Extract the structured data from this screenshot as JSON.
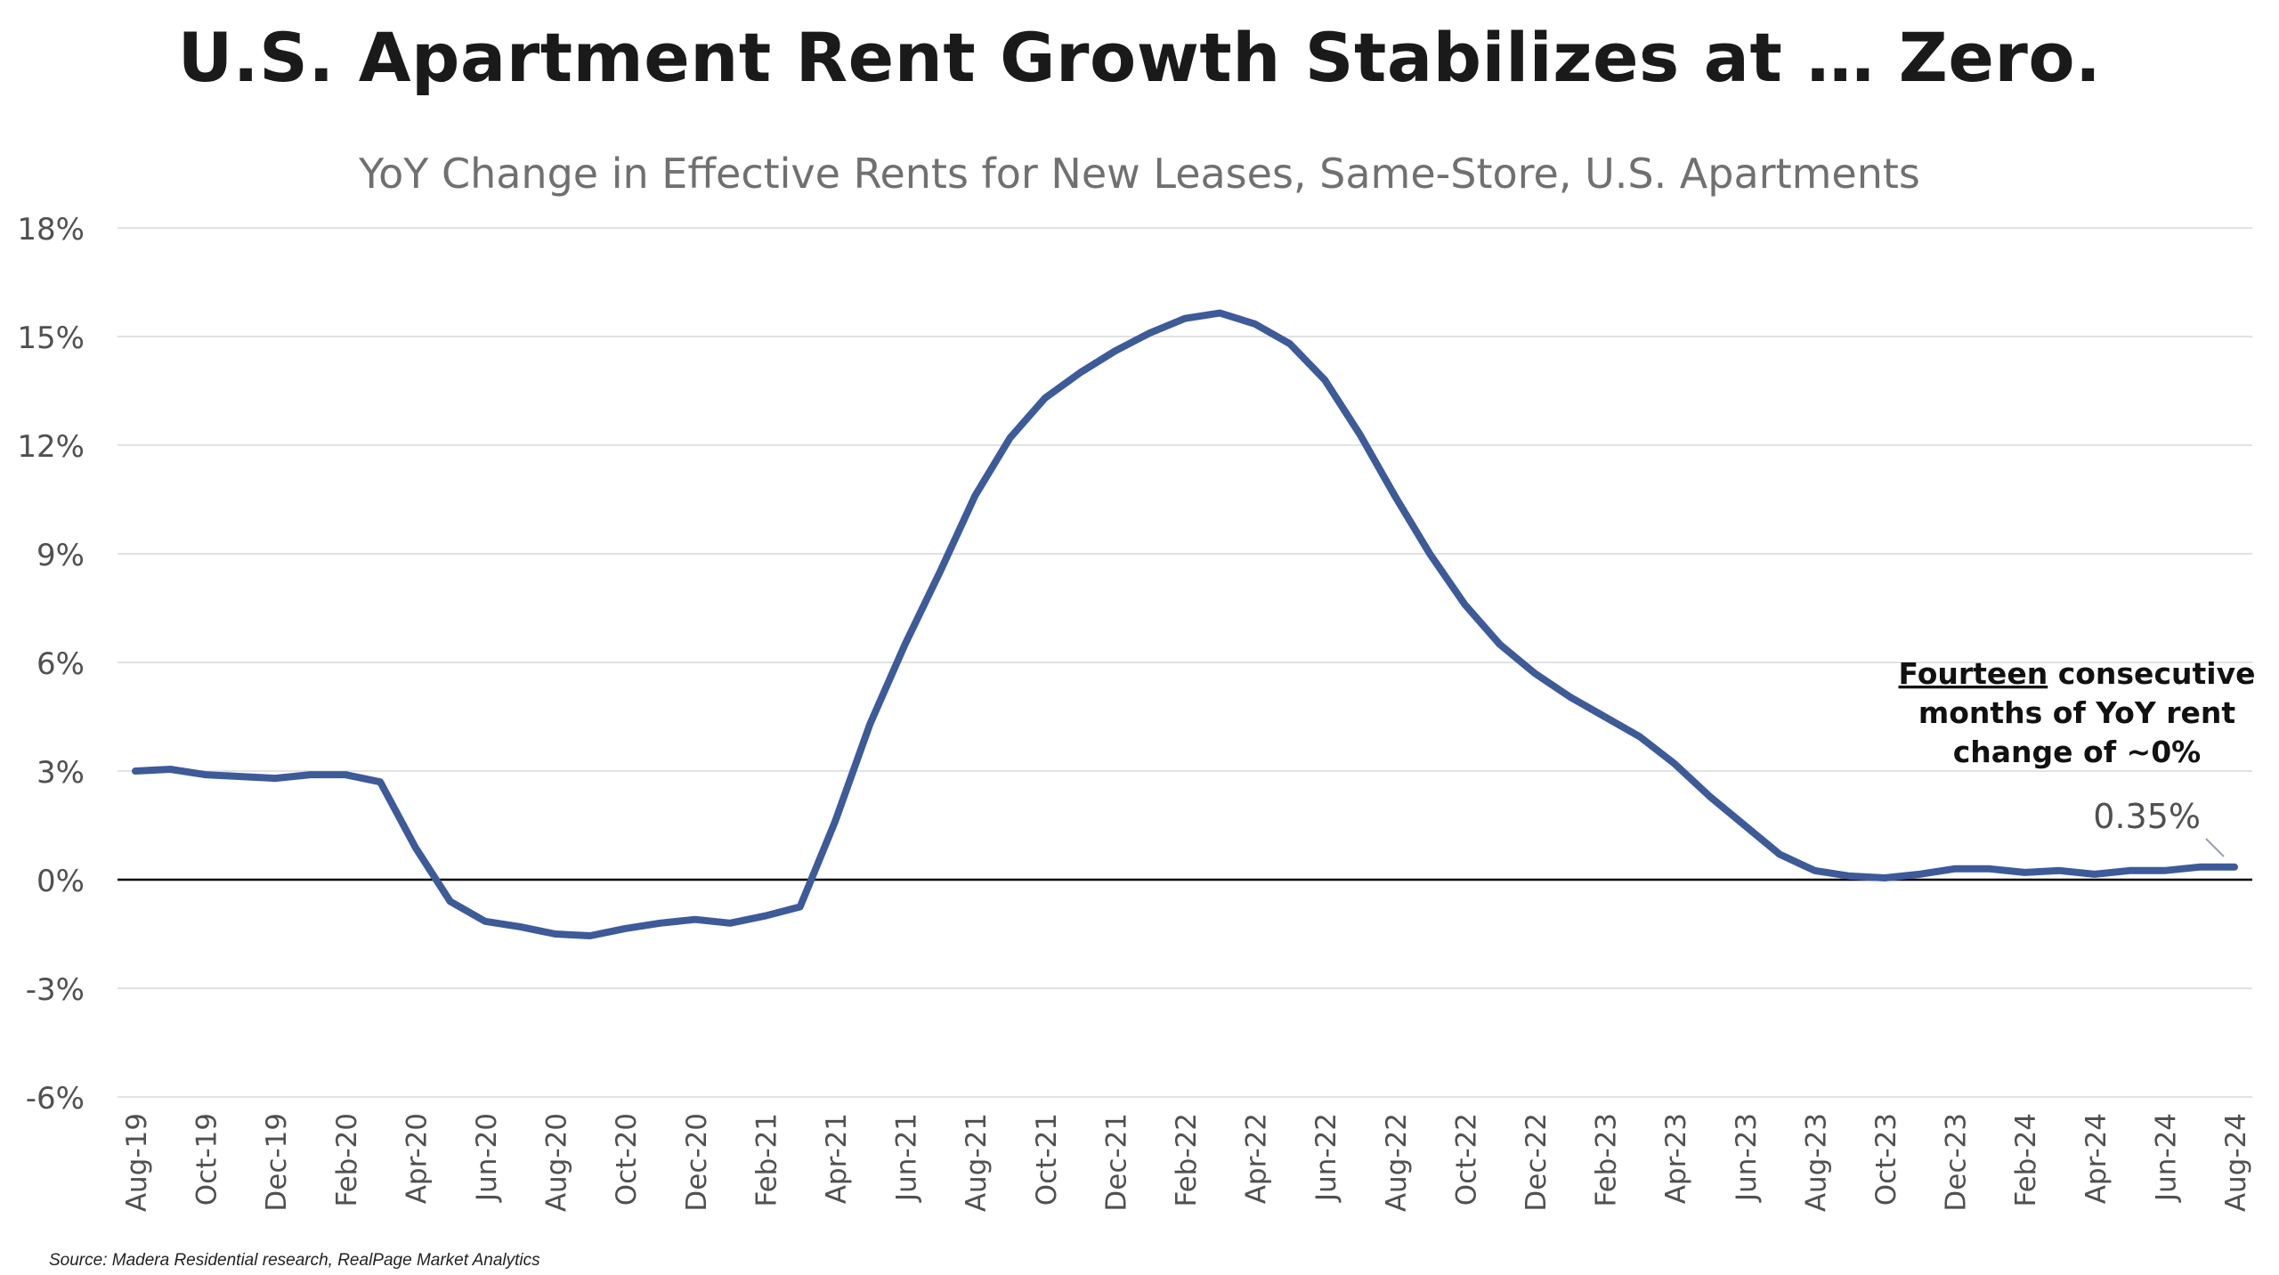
{
  "page": {
    "title": "U.S. Apartment Rent Growth Stabilizes at … Zero.",
    "subtitle": "YoY Change in Effective Rents for New Leases, Same-Store, U.S. Apartments",
    "source": "Source: Madera Residential research, RealPage Market Analytics"
  },
  "chart_data": {
    "type": "line",
    "title": "U.S. Apartment Rent Growth Stabilizes at … Zero.",
    "subtitle": "YoY Change in Effective Rents for New Leases, Same-Store, U.S. Apartments",
    "xlabel": "",
    "ylabel": "",
    "ylim": [
      -6,
      18
    ],
    "yticks": [
      "18%",
      "15%",
      "12%",
      "9%",
      "6%",
      "3%",
      "0%",
      "-3%",
      "-6%"
    ],
    "y_tick_values": [
      18,
      15,
      12,
      9,
      6,
      3,
      0,
      -3,
      -6
    ],
    "grid": true,
    "legend": "none",
    "x": [
      "Aug-19",
      "Sep-19",
      "Oct-19",
      "Nov-19",
      "Dec-19",
      "Jan-20",
      "Feb-20",
      "Mar-20",
      "Apr-20",
      "May-20",
      "Jun-20",
      "Jul-20",
      "Aug-20",
      "Sep-20",
      "Oct-20",
      "Nov-20",
      "Dec-20",
      "Jan-21",
      "Feb-21",
      "Mar-21",
      "Apr-21",
      "May-21",
      "Jun-21",
      "Jul-21",
      "Aug-21",
      "Sep-21",
      "Oct-21",
      "Nov-21",
      "Dec-21",
      "Jan-22",
      "Feb-22",
      "Mar-22",
      "Apr-22",
      "May-22",
      "Jun-22",
      "Jul-22",
      "Aug-22",
      "Sep-22",
      "Oct-22",
      "Nov-22",
      "Dec-22",
      "Jan-23",
      "Feb-23",
      "Mar-23",
      "Apr-23",
      "May-23",
      "Jun-23",
      "Jul-23",
      "Aug-23",
      "Sep-23",
      "Oct-23",
      "Nov-23",
      "Dec-23",
      "Jan-24",
      "Feb-24",
      "Mar-24",
      "Apr-24",
      "May-24",
      "Jun-24",
      "Jul-24",
      "Aug-24"
    ],
    "x_tick_labels": [
      "Aug-19",
      "Oct-19",
      "Dec-19",
      "Feb-20",
      "Apr-20",
      "Jun-20",
      "Aug-20",
      "Oct-20",
      "Dec-20",
      "Feb-21",
      "Apr-21",
      "Jun-21",
      "Aug-21",
      "Oct-21",
      "Dec-21",
      "Feb-22",
      "Apr-22",
      "Jun-22",
      "Aug-22",
      "Oct-22",
      "Dec-22",
      "Feb-23",
      "Apr-23",
      "Jun-23",
      "Aug-23",
      "Oct-23",
      "Dec-23",
      "Feb-24",
      "Apr-24",
      "Jun-24",
      "Aug-24"
    ],
    "series": [
      {
        "color": "#3d5a99",
        "values": [
          3.0,
          3.05,
          2.9,
          2.85,
          2.8,
          2.9,
          2.9,
          2.7,
          0.9,
          -0.6,
          -1.15,
          -1.3,
          -1.5,
          -1.55,
          -1.35,
          -1.2,
          -1.1,
          -1.2,
          -1.0,
          -0.75,
          1.6,
          4.3,
          6.5,
          8.5,
          10.6,
          12.2,
          13.3,
          14.0,
          14.6,
          15.1,
          15.5,
          15.65,
          15.35,
          14.8,
          13.8,
          12.3,
          10.6,
          9.0,
          7.6,
          6.5,
          5.7,
          5.05,
          4.5,
          3.95,
          3.2,
          2.3,
          1.5,
          0.7,
          0.25,
          0.1,
          0.05,
          0.15,
          0.3,
          0.3,
          0.2,
          0.25,
          0.15,
          0.25,
          0.25,
          0.35,
          0.35
        ]
      }
    ],
    "data_label": {
      "value": "0.35%"
    },
    "annotation": {
      "emphasis": "Fourteen",
      "line1_rest": " consecutive",
      "line2": "months of YoY rent",
      "line3": "change of ~0%"
    }
  }
}
